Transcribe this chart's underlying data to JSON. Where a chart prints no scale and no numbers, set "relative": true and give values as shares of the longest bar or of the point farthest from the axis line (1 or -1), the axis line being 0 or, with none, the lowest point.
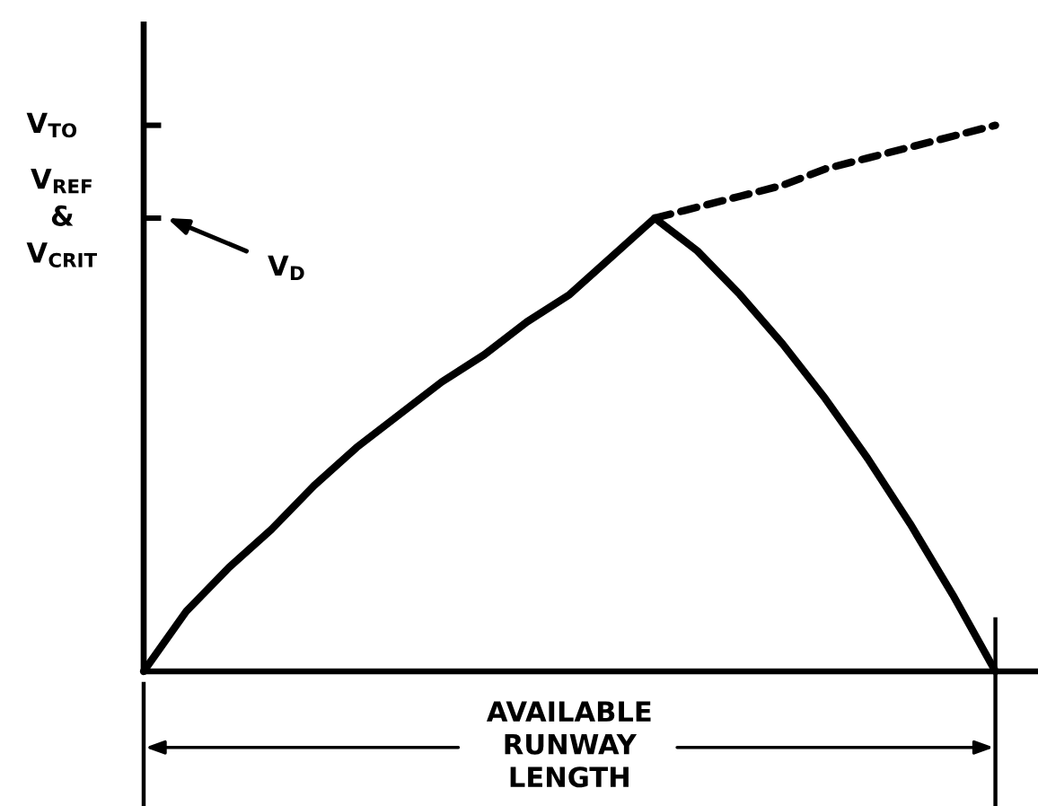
{
  "chart_data": {
    "type": "line",
    "relative": true,
    "xlabel": "AVAILABLE\nRUNWAY\nLENGTH",
    "line_style": "solid",
    "categories": [
      null,
      null,
      null,
      null,
      null,
      null,
      null,
      null,
      null,
      null,
      null,
      null,
      null,
      null,
      null,
      null,
      null,
      null,
      null,
      null,
      null
    ],
    "annotations": [
      "V$_{TO}$",
      "V$_{REF}$\n&\nV$_{CRIT}$",
      "V$_{D}$"
    ],
    "series": [
      {
        "color": "#000000",
        "values": [
          0,
          0.11,
          0.19,
          0.26,
          0.34,
          0.41,
          0.47,
          0.53,
          0.58,
          0.64,
          0.69,
          0.76,
          0.83,
          null,
          null,
          null,
          null,
          null,
          null,
          null,
          null
        ]
      },
      {
        "color": "#000000",
        "values": [
          null,
          null,
          null,
          null,
          null,
          null,
          null,
          null,
          null,
          null,
          null,
          null,
          0.83,
          0.77,
          0.69,
          0.6,
          0.5,
          0.39,
          0.27,
          0.14,
          0
        ]
      },
      {
        "color": "#000000",
        "line_style": "dashed",
        "values": [
          null,
          null,
          null,
          null,
          null,
          null,
          null,
          null,
          null,
          null,
          null,
          null,
          0.83,
          0.85,
          0.87,
          0.89,
          0.92,
          0.94,
          0.96,
          0.98,
          1.0
        ]
      }
    ]
  }
}
